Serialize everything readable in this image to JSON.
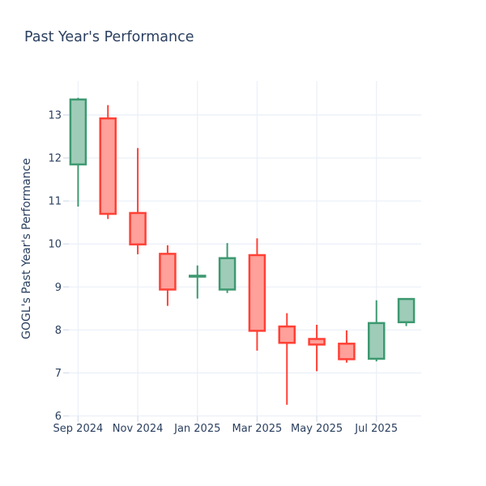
{
  "chart_data": {
    "type": "candlestick",
    "title": "Past Year's Performance",
    "ylabel": "GOGL's Past Year's Performance",
    "xlabel": "",
    "legend": false,
    "grid": true,
    "ylim": [
      6.0,
      13.79
    ],
    "y_ticks": [
      6,
      7,
      8,
      9,
      10,
      11,
      12,
      13
    ],
    "x_ticks": [
      {
        "label": "Sep 2024",
        "index": 0
      },
      {
        "label": "Nov 2024",
        "index": 2
      },
      {
        "label": "Jan 2025",
        "index": 4
      },
      {
        "label": "Mar 2025",
        "index": 6
      },
      {
        "label": "May 2025",
        "index": 8
      },
      {
        "label": "Jul 2025",
        "index": 10
      }
    ],
    "candles": [
      {
        "label": "Sep 2024",
        "open": 11.85,
        "high": 13.4,
        "low": 10.87,
        "close": 13.36
      },
      {
        "label": "Oct 2024",
        "open": 12.92,
        "high": 13.23,
        "low": 10.58,
        "close": 10.7
      },
      {
        "label": "Nov 2024",
        "open": 10.72,
        "high": 12.23,
        "low": 9.76,
        "close": 9.99
      },
      {
        "label": "Dec 2024",
        "open": 9.77,
        "high": 9.97,
        "low": 8.56,
        "close": 8.94
      },
      {
        "label": "Jan 2025",
        "open": 9.24,
        "high": 9.5,
        "low": 8.73,
        "close": 9.26
      },
      {
        "label": "Feb 2025",
        "open": 8.94,
        "high": 10.02,
        "low": 8.86,
        "close": 9.67
      },
      {
        "label": "Mar 2025",
        "open": 9.74,
        "high": 10.13,
        "low": 7.52,
        "close": 7.98
      },
      {
        "label": "Apr 2025",
        "open": 8.08,
        "high": 8.39,
        "low": 6.26,
        "close": 7.7
      },
      {
        "label": "May 2025",
        "open": 7.79,
        "high": 8.12,
        "low": 7.04,
        "close": 7.66
      },
      {
        "label": "Jun 2025",
        "open": 7.68,
        "high": 7.99,
        "low": 7.24,
        "close": 7.32
      },
      {
        "label": "Jul 2025",
        "open": 7.33,
        "high": 8.69,
        "low": 7.27,
        "close": 8.16
      },
      {
        "label": "Aug 2025",
        "open": 8.18,
        "high": 8.72,
        "low": 8.09,
        "close": 8.72
      }
    ],
    "colors": {
      "increasing_line": "#3D9970",
      "increasing_fill": "#9ECCB8",
      "decreasing_line": "#FF4136",
      "decreasing_fill": "#FFA09A",
      "text": "#2A3F5F",
      "grid": "#EBF0F8",
      "tick": "#D9E0EC"
    }
  }
}
